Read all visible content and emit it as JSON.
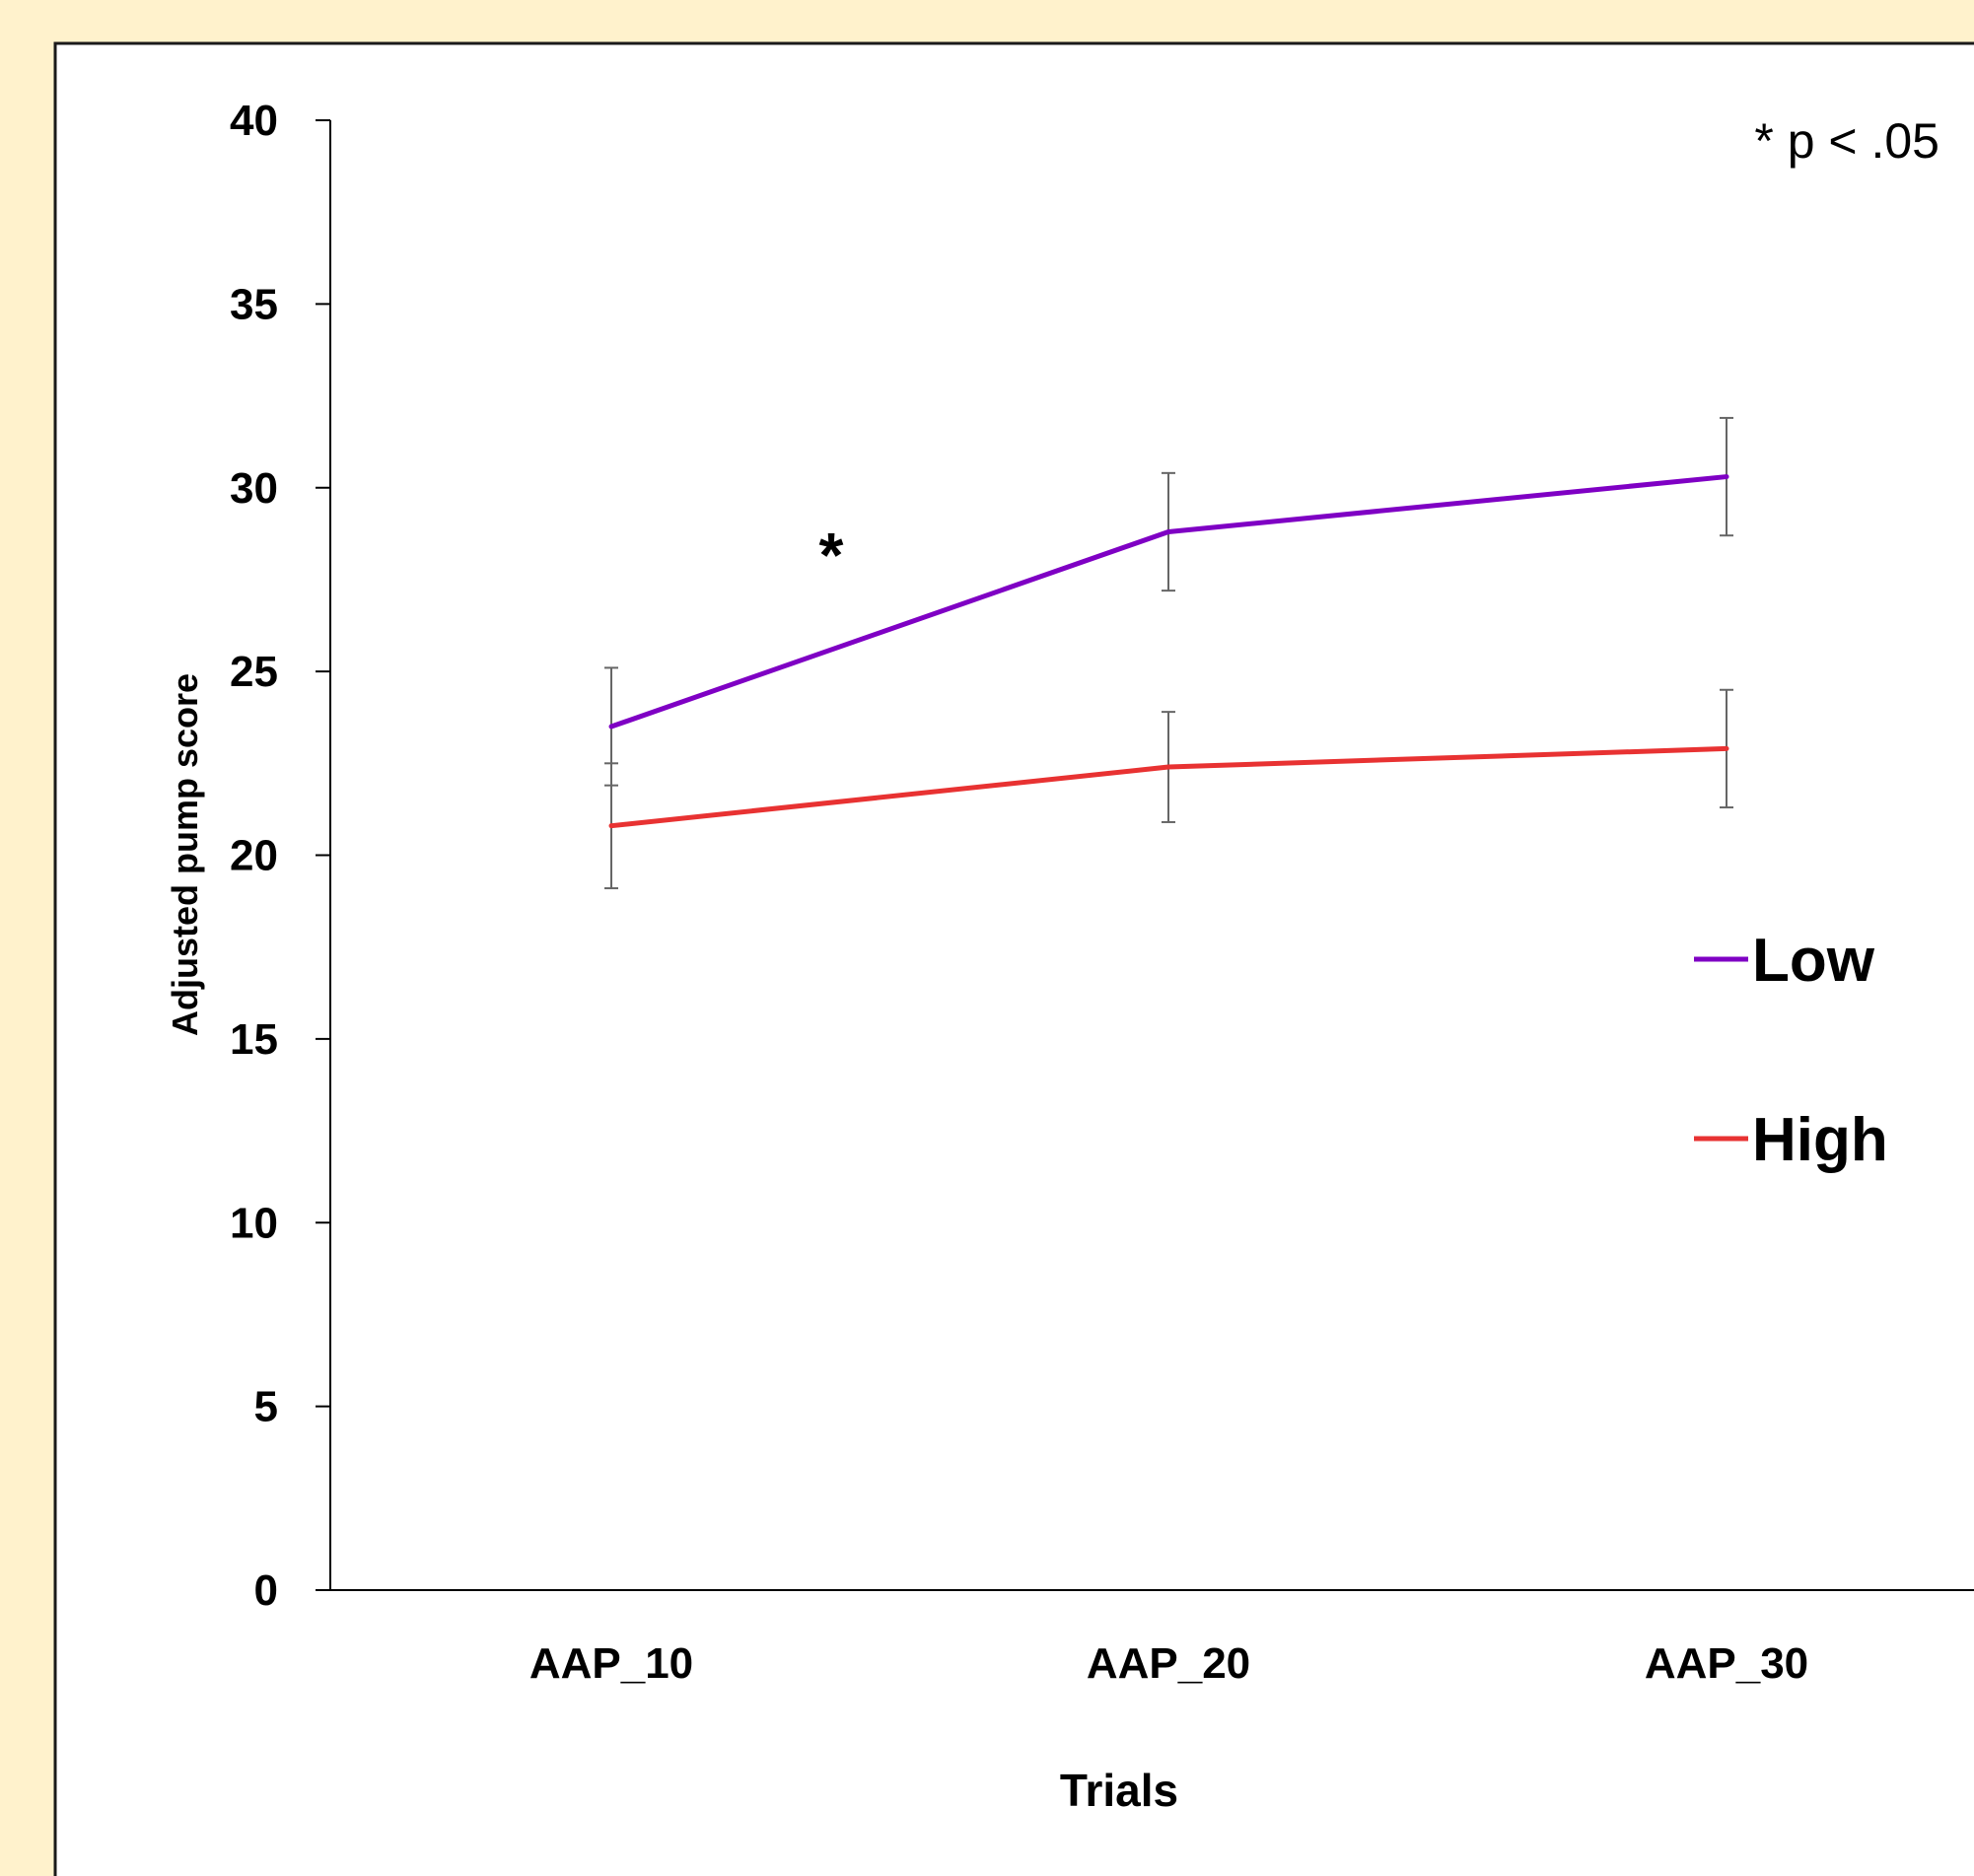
{
  "chart_data": {
    "type": "line",
    "title": "",
    "xlabel": "Trials",
    "ylabel": "Adjusted pump score",
    "categories": [
      "AAP_10",
      "AAP_20",
      "AAP_30"
    ],
    "ylim": [
      0,
      40
    ],
    "yticks": [
      0,
      5,
      10,
      15,
      20,
      25,
      30,
      35,
      40
    ],
    "grid": false,
    "legend_position": "right",
    "series": [
      {
        "name": "Low",
        "color": "#7f00c4",
        "values": [
          23.5,
          28.8,
          30.3
        ],
        "error": [
          1.6,
          1.6,
          1.6
        ]
      },
      {
        "name": "High",
        "color": "#e83232",
        "values": [
          20.8,
          22.4,
          22.9
        ],
        "error": [
          1.7,
          1.5,
          1.6
        ]
      }
    ],
    "annotations": [
      {
        "text": "*",
        "note": "significance marker"
      }
    ],
    "note": "* p < .05"
  }
}
